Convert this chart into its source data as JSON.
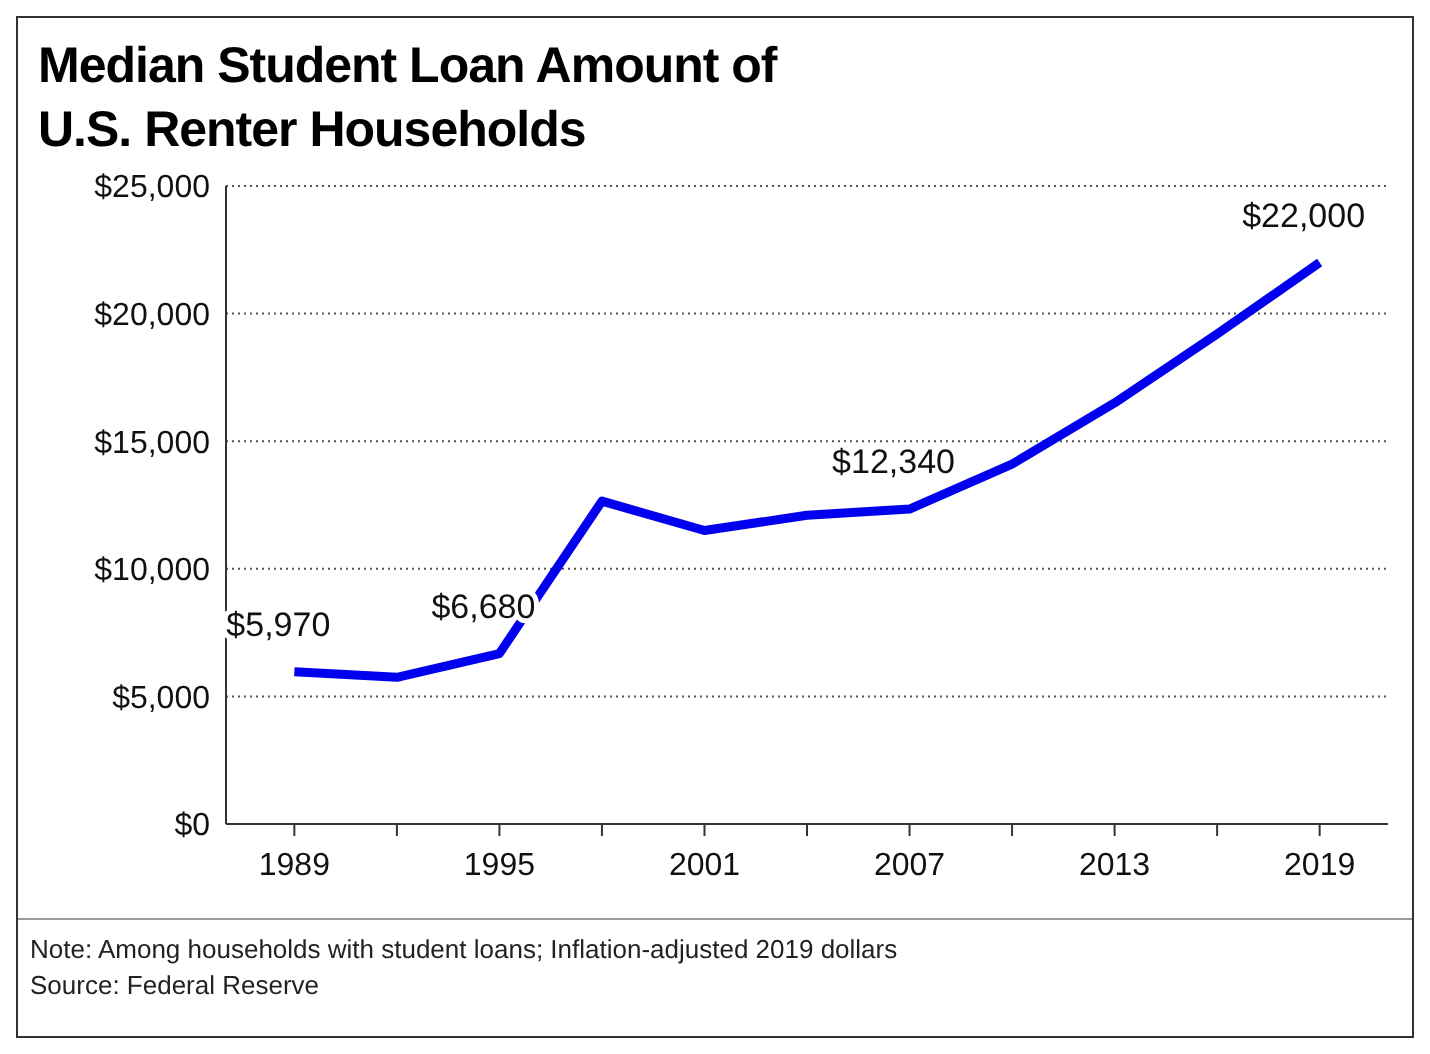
{
  "chart_data": {
    "type": "line",
    "title": "Median Student Loan Amount of U.S. Renter Households",
    "x": [
      1989,
      1992,
      1995,
      1998,
      2001,
      2004,
      2007,
      2010,
      2013,
      2016,
      2019
    ],
    "series": [
      {
        "color": "#0000ee",
        "values": [
          5970,
          5750,
          6680,
          12650,
          11500,
          12100,
          12340,
          14100,
          16500,
          19200,
          22000
        ],
        "value_labels": [
          "$5,970",
          null,
          "$6,680",
          null,
          null,
          null,
          "$12,340",
          null,
          null,
          null,
          "$22,000"
        ]
      }
    ],
    "xlim": [
      1987,
      2021
    ],
    "xticks": [
      1989,
      {
        "value": 1992,
        "label": null
      },
      1995,
      {
        "value": 1998,
        "label": null
      },
      2001,
      {
        "value": 2004,
        "label": null
      },
      2007,
      {
        "value": 2010,
        "label": null
      },
      2013,
      {
        "value": 2016,
        "label": null
      },
      2019
    ],
    "ylim": [
      0,
      25000
    ],
    "yticks": [
      {
        "value": 0,
        "label": "$0"
      },
      {
        "value": 5000,
        "label": "$5,000"
      },
      {
        "value": 10000,
        "label": "$10,000"
      },
      {
        "value": 15000,
        "label": "$15,000"
      },
      {
        "value": 20000,
        "label": "$20,000"
      },
      {
        "value": 25000,
        "label": "$25,000"
      }
    ],
    "grid": "y",
    "legend": false,
    "marker": "none",
    "line_style": "solid",
    "annotations": [
      "Note: Among households with student loans; Inflation-adjusted 2019 dollars",
      "Source: Federal Reserve"
    ]
  }
}
